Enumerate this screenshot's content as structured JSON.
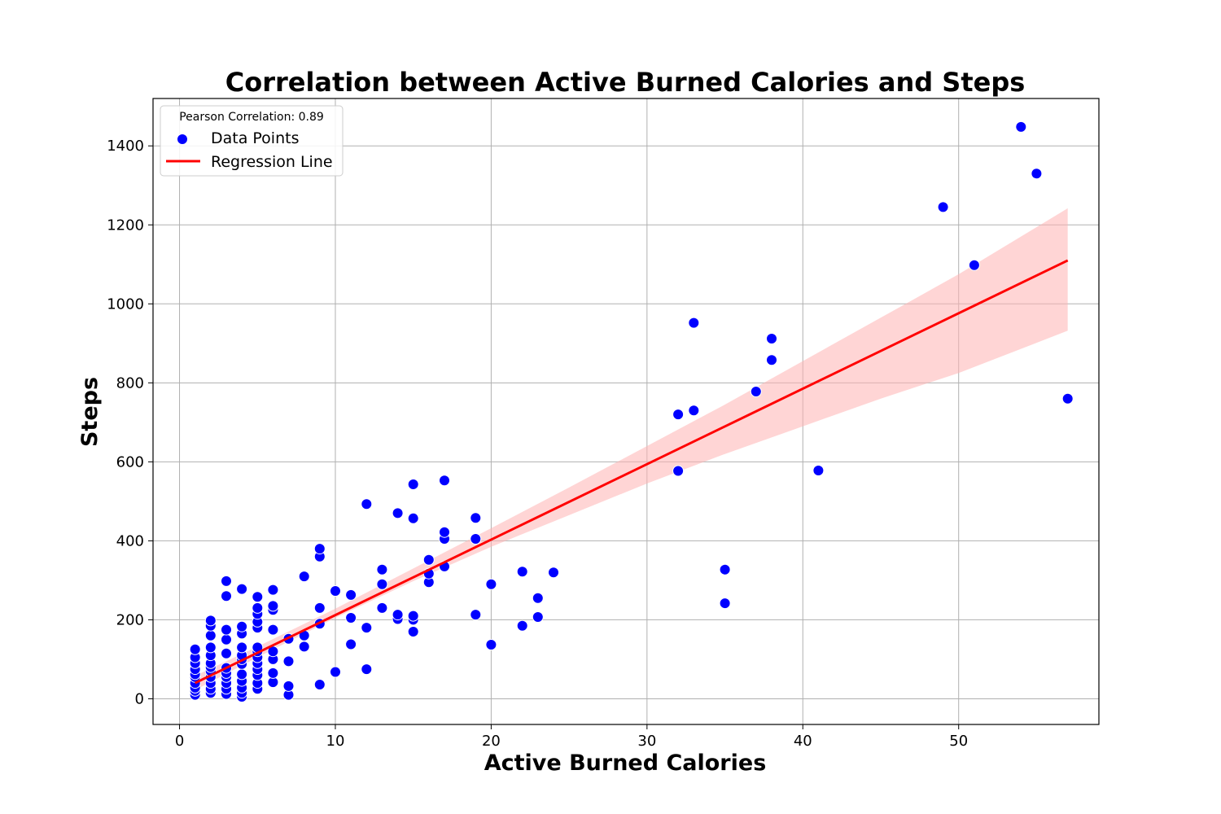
{
  "chart_data": {
    "type": "scatter",
    "title": "Correlation between Active Burned Calories and Steps",
    "xlabel": "Active Burned Calories",
    "ylabel": "Steps",
    "xlim": [
      -1.7,
      59
    ],
    "ylim": [
      -65,
      1520
    ],
    "xticks": [
      0,
      10,
      20,
      30,
      40,
      50
    ],
    "yticks": [
      0,
      200,
      400,
      600,
      800,
      1000,
      1200,
      1400
    ],
    "grid": true,
    "legend": {
      "placement": "top-left",
      "title": "Pearson Correlation: 0.89",
      "entries": [
        "Data Points",
        "Regression Line"
      ]
    },
    "colors": {
      "points": "#0000ff",
      "regression": "#ff0000",
      "band": "#ffb3b3"
    },
    "series": [
      {
        "name": "Data Points",
        "type": "scatter",
        "points": [
          [
            1,
            10
          ],
          [
            1,
            20
          ],
          [
            1,
            28
          ],
          [
            1,
            40
          ],
          [
            1,
            55
          ],
          [
            1,
            62
          ],
          [
            1,
            75
          ],
          [
            1,
            90
          ],
          [
            1,
            105
          ],
          [
            1,
            125
          ],
          [
            2,
            15
          ],
          [
            2,
            25
          ],
          [
            2,
            40
          ],
          [
            2,
            55
          ],
          [
            2,
            70
          ],
          [
            2,
            80
          ],
          [
            2,
            90
          ],
          [
            2,
            110
          ],
          [
            2,
            130
          ],
          [
            2,
            160
          ],
          [
            2,
            185
          ],
          [
            2,
            198
          ],
          [
            3,
            12
          ],
          [
            3,
            25
          ],
          [
            3,
            40
          ],
          [
            3,
            55
          ],
          [
            3,
            65
          ],
          [
            3,
            78
          ],
          [
            3,
            115
          ],
          [
            3,
            150
          ],
          [
            3,
            175
          ],
          [
            3,
            260
          ],
          [
            3,
            298
          ],
          [
            4,
            5
          ],
          [
            4,
            15
          ],
          [
            4,
            28
          ],
          [
            4,
            45
          ],
          [
            4,
            62
          ],
          [
            4,
            88
          ],
          [
            4,
            100
          ],
          [
            4,
            110
          ],
          [
            4,
            130
          ],
          [
            4,
            165
          ],
          [
            4,
            183
          ],
          [
            4,
            278
          ],
          [
            5,
            25
          ],
          [
            5,
            40
          ],
          [
            5,
            60
          ],
          [
            5,
            75
          ],
          [
            5,
            90
          ],
          [
            5,
            105
          ],
          [
            5,
            120
          ],
          [
            5,
            130
          ],
          [
            5,
            180
          ],
          [
            5,
            195
          ],
          [
            5,
            215
          ],
          [
            5,
            230
          ],
          [
            5,
            258
          ],
          [
            6,
            42
          ],
          [
            6,
            65
          ],
          [
            6,
            100
          ],
          [
            6,
            120
          ],
          [
            6,
            175
          ],
          [
            6,
            225
          ],
          [
            6,
            235
          ],
          [
            6,
            276
          ],
          [
            7,
            10
          ],
          [
            7,
            32
          ],
          [
            7,
            95
          ],
          [
            7,
            152
          ],
          [
            8,
            132
          ],
          [
            8,
            160
          ],
          [
            8,
            310
          ],
          [
            9,
            36
          ],
          [
            9,
            190
          ],
          [
            9,
            230
          ],
          [
            9,
            360
          ],
          [
            9,
            380
          ],
          [
            10,
            68
          ],
          [
            10,
            273
          ],
          [
            11,
            138
          ],
          [
            11,
            205
          ],
          [
            11,
            263
          ],
          [
            12,
            75
          ],
          [
            12,
            180
          ],
          [
            12,
            493
          ],
          [
            13,
            230
          ],
          [
            13,
            290
          ],
          [
            13,
            327
          ],
          [
            14,
            202
          ],
          [
            14,
            213
          ],
          [
            14,
            470
          ],
          [
            15,
            170
          ],
          [
            15,
            200
          ],
          [
            15,
            210
          ],
          [
            15,
            457
          ],
          [
            15,
            543
          ],
          [
            16,
            295
          ],
          [
            16,
            317
          ],
          [
            16,
            352
          ],
          [
            17,
            335
          ],
          [
            17,
            405
          ],
          [
            17,
            422
          ],
          [
            17,
            553
          ],
          [
            19,
            213
          ],
          [
            19,
            405
          ],
          [
            19,
            458
          ],
          [
            20,
            137
          ],
          [
            20,
            290
          ],
          [
            22,
            185
          ],
          [
            22,
            322
          ],
          [
            23,
            207
          ],
          [
            23,
            255
          ],
          [
            24,
            320
          ],
          [
            32,
            577
          ],
          [
            32,
            720
          ],
          [
            33,
            730
          ],
          [
            33,
            952
          ],
          [
            35,
            242
          ],
          [
            35,
            327
          ],
          [
            37,
            778
          ],
          [
            38,
            858
          ],
          [
            38,
            912
          ],
          [
            41,
            578
          ],
          [
            49,
            1245
          ],
          [
            51,
            1098
          ],
          [
            54,
            1448
          ],
          [
            55,
            1330
          ],
          [
            57,
            760
          ]
        ]
      },
      {
        "name": "Regression Line",
        "type": "line",
        "x": [
          1,
          57
        ],
        "y": [
          40,
          1110
        ]
      }
    ],
    "confidence_band": {
      "x": [
        1,
        5,
        10,
        15,
        20,
        25,
        30,
        35,
        40,
        45,
        50,
        57
      ],
      "lower": [
        22,
        105,
        205,
        298,
        385,
        465,
        545,
        620,
        690,
        760,
        825,
        932
      ],
      "upper": [
        58,
        132,
        228,
        330,
        432,
        535,
        640,
        745,
        855,
        965,
        1075,
        1242
      ]
    }
  }
}
